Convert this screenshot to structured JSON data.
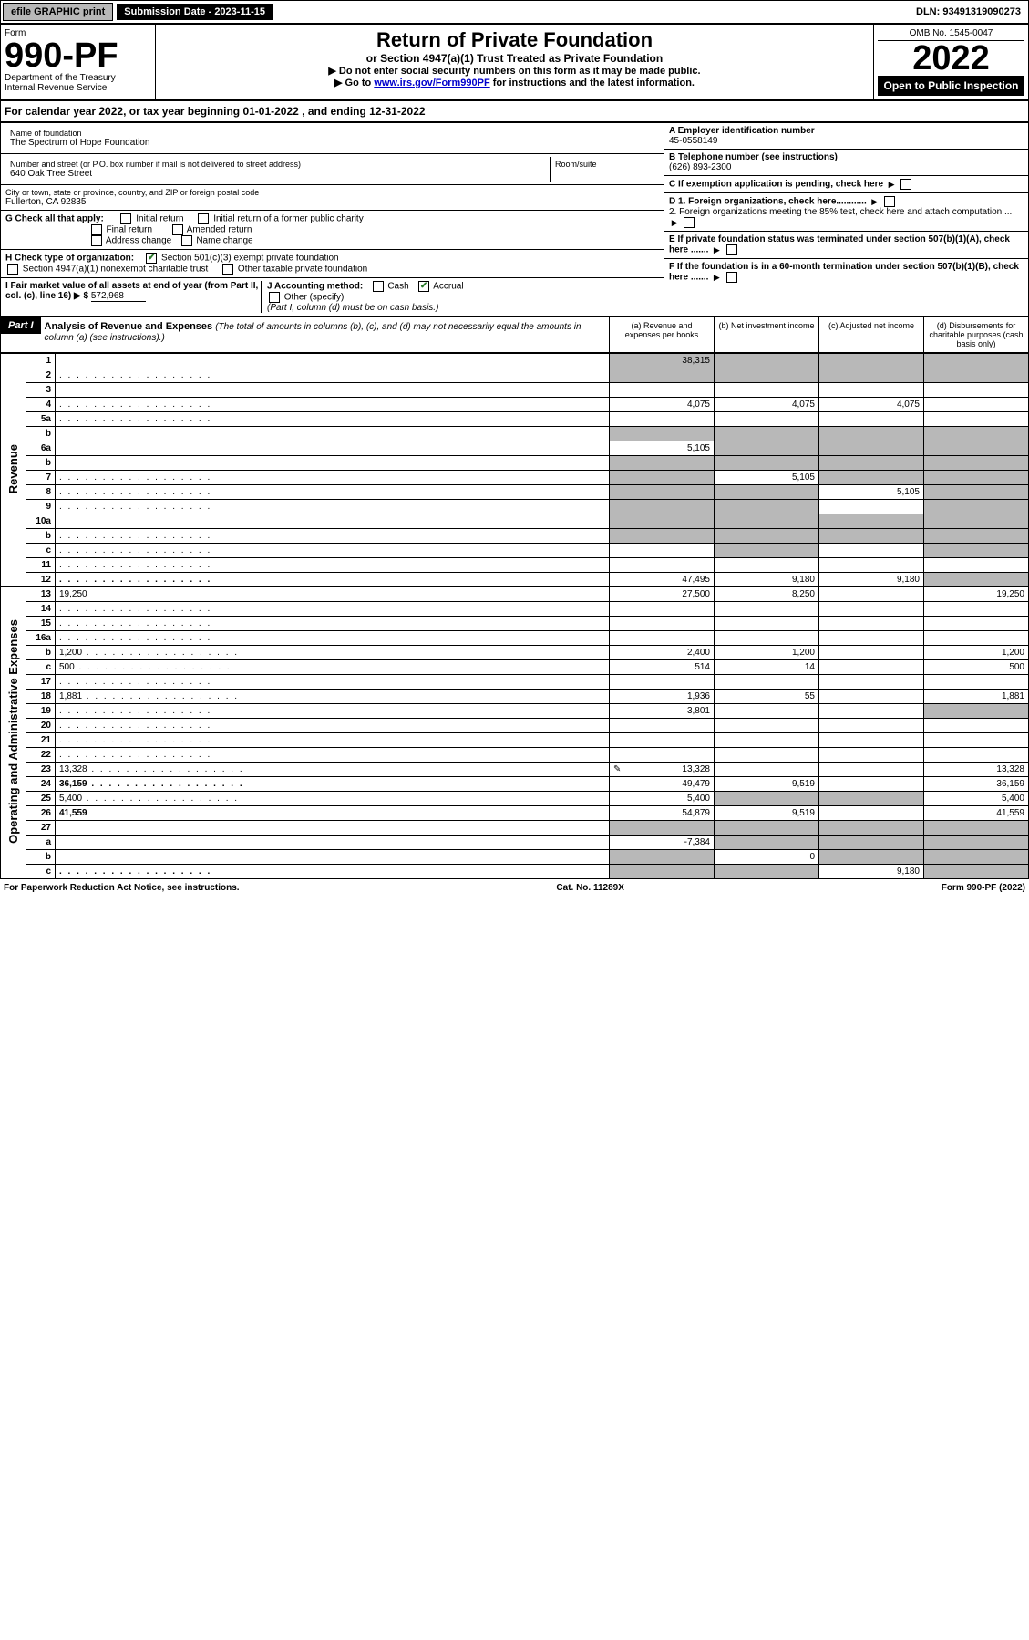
{
  "topbar": {
    "efile": "efile GRAPHIC print",
    "submission_label": "Submission Date - 2023-11-15",
    "dln": "DLN: 93491319090273"
  },
  "header": {
    "form_label": "Form",
    "form_number": "990-PF",
    "dept": "Department of the Treasury",
    "irs": "Internal Revenue Service",
    "title": "Return of Private Foundation",
    "subtitle": "or Section 4947(a)(1) Trust Treated as Private Foundation",
    "instr1": "▶ Do not enter social security numbers on this form as it may be made public.",
    "instr2_pre": "▶ Go to ",
    "instr2_link": "www.irs.gov/Form990PF",
    "instr2_post": " for instructions and the latest information.",
    "omb": "OMB No. 1545-0047",
    "year": "2022",
    "open": "Open to Public Inspection"
  },
  "calyear": "For calendar year 2022, or tax year beginning 01-01-2022                             , and ending 12-31-2022",
  "foundation": {
    "name_label": "Name of foundation",
    "name": "The Spectrum of Hope Foundation",
    "addr_label": "Number and street (or P.O. box number if mail is not delivered to street address)",
    "addr": "640 Oak Tree Street",
    "room_label": "Room/suite",
    "city_label": "City or town, state or province, country, and ZIP or foreign postal code",
    "city": "Fullerton, CA  92835",
    "ein_label": "A Employer identification number",
    "ein": "45-0558149",
    "phone_label": "B Telephone number (see instructions)",
    "phone": "(626) 893-2300",
    "c_label": "C If exemption application is pending, check here",
    "d1": "D 1. Foreign organizations, check here............",
    "d2": "2. Foreign organizations meeting the 85% test, check here and attach computation ...",
    "e_label": "E  If private foundation status was terminated under section 507(b)(1)(A), check here .......",
    "f_label": "F  If the foundation is in a 60-month termination under section 507(b)(1)(B), check here .......",
    "g_label": "G Check all that apply:",
    "g_initial": "Initial return",
    "g_initial_former": "Initial return of a former public charity",
    "g_final": "Final return",
    "g_amend": "Amended return",
    "g_addr": "Address change",
    "g_name": "Name change",
    "h_label": "H Check type of organization:",
    "h_501c3": "Section 501(c)(3) exempt private foundation",
    "h_4947": "Section 4947(a)(1) nonexempt charitable trust",
    "h_other": "Other taxable private foundation",
    "i_label": "I Fair market value of all assets at end of year (from Part II, col. (c), line 16) ▶ $",
    "i_value": "572,968",
    "j_label": "J Accounting method:",
    "j_cash": "Cash",
    "j_accrual": "Accrual",
    "j_other": "Other (specify)",
    "j_note": "(Part I, column (d) must be on cash basis.)"
  },
  "part1": {
    "label": "Part I",
    "title": "Analysis of Revenue and Expenses",
    "note": " (The total of amounts in columns (b), (c), and (d) may not necessarily equal the amounts in column (a) (see instructions).)",
    "col_a": "(a)  Revenue and expenses per books",
    "col_b": "(b)  Net investment income",
    "col_c": "(c)  Adjusted net income",
    "col_d": "(d)  Disbursements for charitable purposes (cash basis only)"
  },
  "sides": {
    "revenue": "Revenue",
    "opex": "Operating and Administrative Expenses"
  },
  "rows": [
    {
      "n": "1",
      "d": "",
      "a": "38,315",
      "b": "",
      "c": "",
      "da": "s",
      "db": "s",
      "dc": "s",
      "dd": "s"
    },
    {
      "n": "2",
      "d": "",
      "a": "",
      "b": "",
      "c": "",
      "da": "s",
      "db": "s",
      "dc": "s",
      "dd": "s",
      "dots": true
    },
    {
      "n": "3",
      "d": "",
      "a": "",
      "b": "",
      "c": ""
    },
    {
      "n": "4",
      "d": "",
      "a": "4,075",
      "b": "4,075",
      "c": "4,075",
      "dots": true
    },
    {
      "n": "5a",
      "d": "",
      "a": "",
      "b": "",
      "c": "",
      "dots": true
    },
    {
      "n": "b",
      "d": "",
      "a": "",
      "b": "",
      "c": "",
      "da": "s",
      "db": "s",
      "dc": "s",
      "dd": "s"
    },
    {
      "n": "6a",
      "d": "",
      "a": "5,105",
      "b": "",
      "c": "",
      "db": "s",
      "dc": "s",
      "dd": "s"
    },
    {
      "n": "b",
      "d": "",
      "a": "",
      "b": "",
      "c": "",
      "da": "s",
      "db": "s",
      "dc": "s",
      "dd": "s"
    },
    {
      "n": "7",
      "d": "",
      "a": "",
      "b": "5,105",
      "c": "",
      "da": "s",
      "dc": "s",
      "dd": "s",
      "dots": true
    },
    {
      "n": "8",
      "d": "",
      "a": "",
      "b": "",
      "c": "5,105",
      "da": "s",
      "db": "s",
      "dd": "s",
      "dots": true
    },
    {
      "n": "9",
      "d": "",
      "a": "",
      "b": "",
      "c": "",
      "da": "s",
      "db": "s",
      "dd": "s",
      "dots": true
    },
    {
      "n": "10a",
      "d": "",
      "a": "",
      "b": "",
      "c": "",
      "da": "s",
      "db": "s",
      "dc": "s",
      "dd": "s"
    },
    {
      "n": "b",
      "d": "",
      "a": "",
      "b": "",
      "c": "",
      "da": "s",
      "db": "s",
      "dc": "s",
      "dd": "s",
      "dots": true
    },
    {
      "n": "c",
      "d": "",
      "a": "",
      "b": "",
      "c": "",
      "db": "s",
      "dd": "s",
      "dots": true
    },
    {
      "n": "11",
      "d": "",
      "a": "",
      "b": "",
      "c": "",
      "dots": true
    },
    {
      "n": "12",
      "d": "",
      "a": "47,495",
      "b": "9,180",
      "c": "9,180",
      "bold": true,
      "dd": "s",
      "dots": true
    },
    {
      "n": "13",
      "d": "19,250",
      "a": "27,500",
      "b": "8,250",
      "c": ""
    },
    {
      "n": "14",
      "d": "",
      "a": "",
      "b": "",
      "c": "",
      "dots": true
    },
    {
      "n": "15",
      "d": "",
      "a": "",
      "b": "",
      "c": "",
      "dots": true
    },
    {
      "n": "16a",
      "d": "",
      "a": "",
      "b": "",
      "c": "",
      "dots": true
    },
    {
      "n": "b",
      "d": "1,200",
      "a": "2,400",
      "b": "1,200",
      "c": "",
      "dots": true
    },
    {
      "n": "c",
      "d": "500",
      "a": "514",
      "b": "14",
      "c": "",
      "dots": true
    },
    {
      "n": "17",
      "d": "",
      "a": "",
      "b": "",
      "c": "",
      "dots": true
    },
    {
      "n": "18",
      "d": "1,881",
      "a": "1,936",
      "b": "55",
      "c": "",
      "dots": true
    },
    {
      "n": "19",
      "d": "",
      "a": "3,801",
      "b": "",
      "c": "",
      "dd": "s",
      "dots": true
    },
    {
      "n": "20",
      "d": "",
      "a": "",
      "b": "",
      "c": "",
      "dots": true
    },
    {
      "n": "21",
      "d": "",
      "a": "",
      "b": "",
      "c": "",
      "dots": true
    },
    {
      "n": "22",
      "d": "",
      "a": "",
      "b": "",
      "c": "",
      "dots": true
    },
    {
      "n": "23",
      "d": "13,328",
      "a": "13,328",
      "b": "",
      "c": "",
      "icon": "✎",
      "dots": true
    },
    {
      "n": "24",
      "d": "36,159",
      "a": "49,479",
      "b": "9,519",
      "c": "",
      "bold": true,
      "dots": true
    },
    {
      "n": "25",
      "d": "5,400",
      "a": "5,400",
      "b": "",
      "c": "",
      "db": "s",
      "dc": "s",
      "dots": true
    },
    {
      "n": "26",
      "d": "41,559",
      "a": "54,879",
      "b": "9,519",
      "c": "",
      "bold": true
    },
    {
      "n": "27",
      "d": "",
      "a": "",
      "b": "",
      "c": "",
      "da": "s",
      "db": "s",
      "dc": "s",
      "dd": "s"
    },
    {
      "n": "a",
      "d": "",
      "a": "-7,384",
      "b": "",
      "c": "",
      "bold": true,
      "db": "s",
      "dc": "s",
      "dd": "s"
    },
    {
      "n": "b",
      "d": "",
      "a": "",
      "b": "0",
      "c": "",
      "bold": true,
      "da": "s",
      "dc": "s",
      "dd": "s"
    },
    {
      "n": "c",
      "d": "",
      "a": "",
      "b": "",
      "c": "9,180",
      "bold": true,
      "da": "s",
      "db": "s",
      "dd": "s",
      "dots": true
    }
  ],
  "footer": {
    "pra": "For Paperwork Reduction Act Notice, see instructions.",
    "cat": "Cat. No. 11289X",
    "form": "Form 990-PF (2022)"
  }
}
